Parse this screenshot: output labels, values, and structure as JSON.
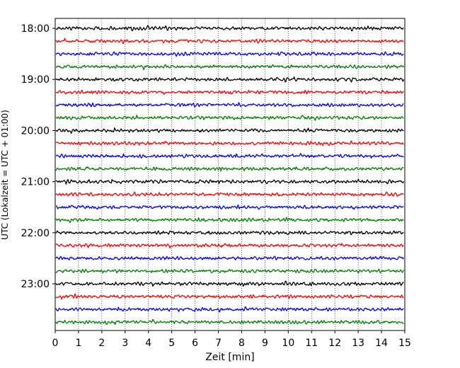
{
  "chart_data": {
    "type": "line",
    "title": "",
    "xlabel": "Zeit  [min]",
    "ylabel": "UTC (Lokalzeit = UTC + 01:00)",
    "xlim": [
      0,
      15
    ],
    "x_ticks": [
      "0",
      "1",
      "2",
      "3",
      "4",
      "5",
      "6",
      "7",
      "8",
      "9",
      "10",
      "11",
      "12",
      "13",
      "14",
      "15"
    ],
    "y_ticks": [
      "18:00",
      "19:00",
      "20:00",
      "21:00",
      "22:00",
      "23:00"
    ],
    "grid": "vertical dotted at each minute",
    "trace_start": "18:00",
    "trace_interval_min": 15,
    "trace_count": 24,
    "trace_colors": [
      "#000000",
      "#ff0000",
      "#0000ff",
      "#008000"
    ],
    "series": [
      {
        "start": "18:00",
        "color": "#000000"
      },
      {
        "start": "18:15",
        "color": "#ff0000"
      },
      {
        "start": "18:30",
        "color": "#0000ff"
      },
      {
        "start": "18:45",
        "color": "#008000"
      },
      {
        "start": "19:00",
        "color": "#000000"
      },
      {
        "start": "19:15",
        "color": "#ff0000"
      },
      {
        "start": "19:30",
        "color": "#0000ff"
      },
      {
        "start": "19:45",
        "color": "#008000"
      },
      {
        "start": "20:00",
        "color": "#000000"
      },
      {
        "start": "20:15",
        "color": "#ff0000"
      },
      {
        "start": "20:30",
        "color": "#0000ff"
      },
      {
        "start": "20:45",
        "color": "#008000"
      },
      {
        "start": "21:00",
        "color": "#000000"
      },
      {
        "start": "21:15",
        "color": "#ff0000"
      },
      {
        "start": "21:30",
        "color": "#0000ff"
      },
      {
        "start": "21:45",
        "color": "#008000"
      },
      {
        "start": "22:00",
        "color": "#000000"
      },
      {
        "start": "22:15",
        "color": "#ff0000"
      },
      {
        "start": "22:30",
        "color": "#0000ff"
      },
      {
        "start": "22:45",
        "color": "#008000"
      },
      {
        "start": "23:00",
        "color": "#000000"
      },
      {
        "start": "23:15",
        "color": "#ff0000"
      },
      {
        "start": "23:30",
        "color": "#0000ff"
      },
      {
        "start": "23:45",
        "color": "#008000"
      }
    ]
  }
}
